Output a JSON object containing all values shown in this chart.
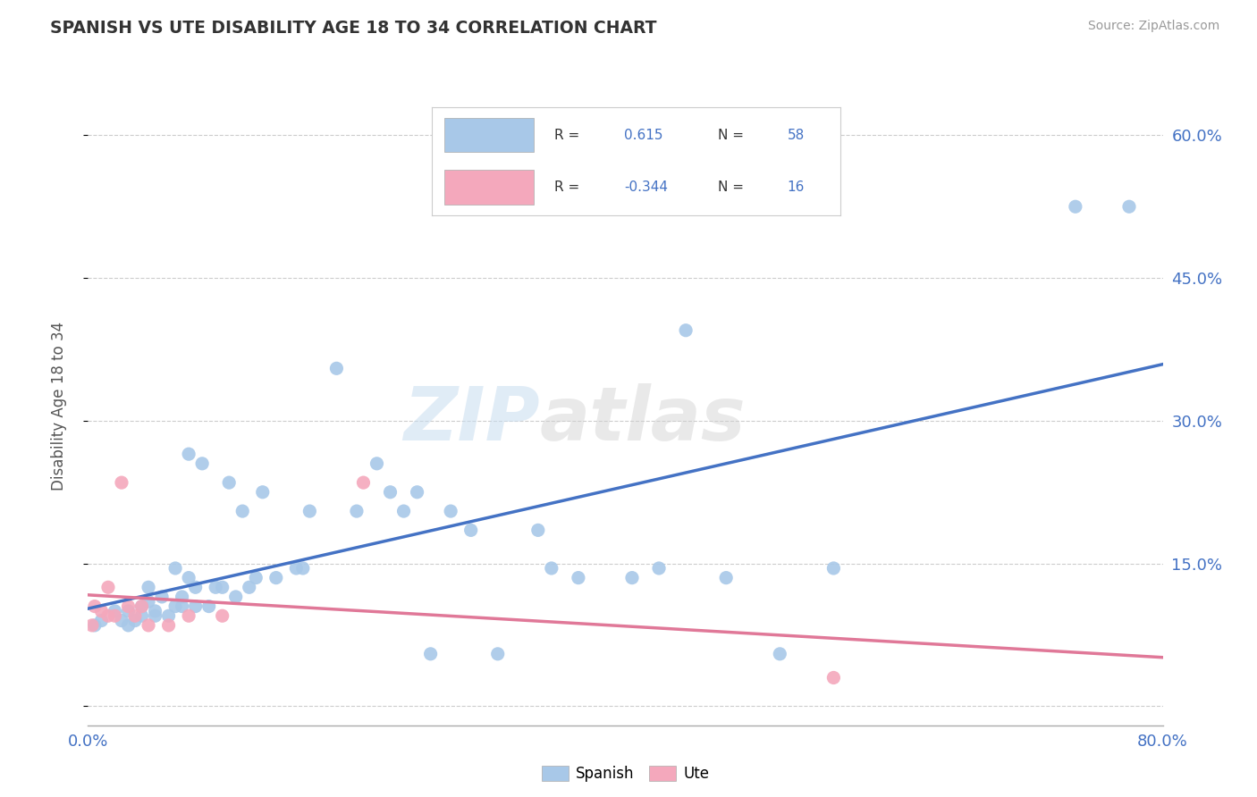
{
  "title": "SPANISH VS UTE DISABILITY AGE 18 TO 34 CORRELATION CHART",
  "source": "Source: ZipAtlas.com",
  "ylabel": "Disability Age 18 to 34",
  "xlim": [
    0.0,
    0.8
  ],
  "ylim": [
    -0.02,
    0.65
  ],
  "y_ticks_right": [
    0.0,
    0.15,
    0.3,
    0.45,
    0.6
  ],
  "y_tick_labels_right": [
    "",
    "15.0%",
    "30.0%",
    "45.0%",
    "60.0%"
  ],
  "r_spanish": 0.615,
  "n_spanish": 58,
  "r_ute": -0.344,
  "n_ute": 16,
  "spanish_color": "#a8c8e8",
  "ute_color": "#f4a8bc",
  "spanish_line_color": "#4472c4",
  "ute_line_color": "#e07898",
  "background_color": "#ffffff",
  "grid_color": "#cccccc",
  "watermark_zip": "ZIP",
  "watermark_atlas": "atlas",
  "spanish_x": [
    0.005,
    0.01,
    0.02,
    0.025,
    0.03,
    0.03,
    0.035,
    0.04,
    0.04,
    0.045,
    0.045,
    0.05,
    0.05,
    0.055,
    0.06,
    0.065,
    0.065,
    0.07,
    0.07,
    0.075,
    0.075,
    0.08,
    0.08,
    0.085,
    0.09,
    0.095,
    0.1,
    0.105,
    0.11,
    0.115,
    0.12,
    0.125,
    0.13,
    0.14,
    0.155,
    0.16,
    0.165,
    0.185,
    0.2,
    0.215,
    0.225,
    0.235,
    0.245,
    0.255,
    0.27,
    0.285,
    0.305,
    0.335,
    0.345,
    0.365,
    0.405,
    0.425,
    0.445,
    0.475,
    0.515,
    0.555,
    0.735,
    0.775
  ],
  "spanish_y": [
    0.085,
    0.09,
    0.1,
    0.09,
    0.085,
    0.1,
    0.09,
    0.105,
    0.095,
    0.11,
    0.125,
    0.1,
    0.095,
    0.115,
    0.095,
    0.105,
    0.145,
    0.105,
    0.115,
    0.135,
    0.265,
    0.105,
    0.125,
    0.255,
    0.105,
    0.125,
    0.125,
    0.235,
    0.115,
    0.205,
    0.125,
    0.135,
    0.225,
    0.135,
    0.145,
    0.145,
    0.205,
    0.355,
    0.205,
    0.255,
    0.225,
    0.205,
    0.225,
    0.055,
    0.205,
    0.185,
    0.055,
    0.185,
    0.145,
    0.135,
    0.135,
    0.145,
    0.395,
    0.135,
    0.055,
    0.145,
    0.525,
    0.525
  ],
  "ute_x": [
    0.003,
    0.005,
    0.01,
    0.015,
    0.015,
    0.02,
    0.025,
    0.03,
    0.035,
    0.04,
    0.045,
    0.06,
    0.075,
    0.1,
    0.205,
    0.555
  ],
  "ute_y": [
    0.085,
    0.105,
    0.1,
    0.125,
    0.095,
    0.095,
    0.235,
    0.105,
    0.095,
    0.105,
    0.085,
    0.085,
    0.095,
    0.095,
    0.235,
    0.03
  ]
}
